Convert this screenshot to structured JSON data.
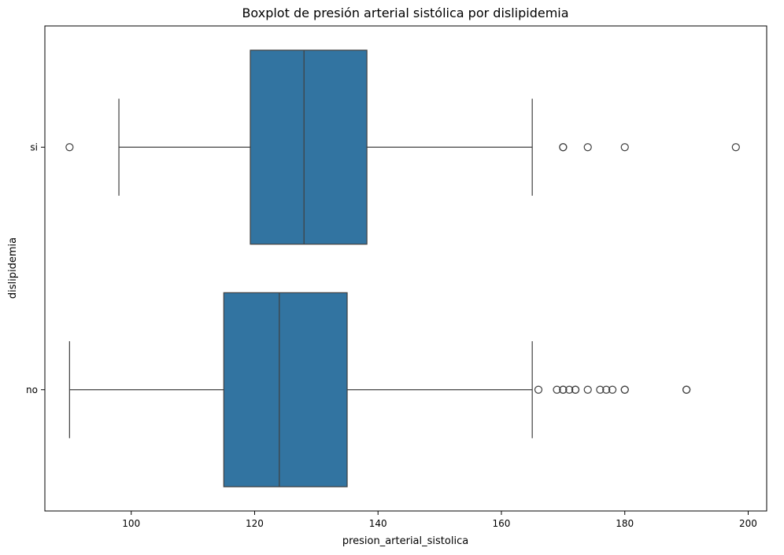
{
  "chart_data": {
    "type": "boxplot",
    "orientation": "horizontal",
    "title": "Boxplot de presión arterial sistólica por dislipidemia",
    "xlabel": "presion_arterial_sistolica",
    "ylabel": "dislipidemia",
    "xlim": [
      86,
      203
    ],
    "xticks": [
      100,
      120,
      140,
      160,
      180,
      200
    ],
    "categories": [
      "si",
      "no"
    ],
    "grid": false,
    "box_color": "#3274a1",
    "series": [
      {
        "category": "si",
        "whisker_low": 98,
        "q1": 119.3,
        "median": 128,
        "q3": 138.2,
        "whisker_high": 165,
        "outliers": [
          90,
          170,
          170,
          174,
          180,
          198
        ]
      },
      {
        "category": "no",
        "whisker_low": 90,
        "q1": 115,
        "median": 124,
        "q3": 135,
        "whisker_high": 165,
        "outliers": [
          166,
          169,
          170,
          170,
          171,
          172,
          172,
          174,
          176,
          177,
          178,
          180,
          180,
          190,
          190
        ]
      }
    ]
  }
}
